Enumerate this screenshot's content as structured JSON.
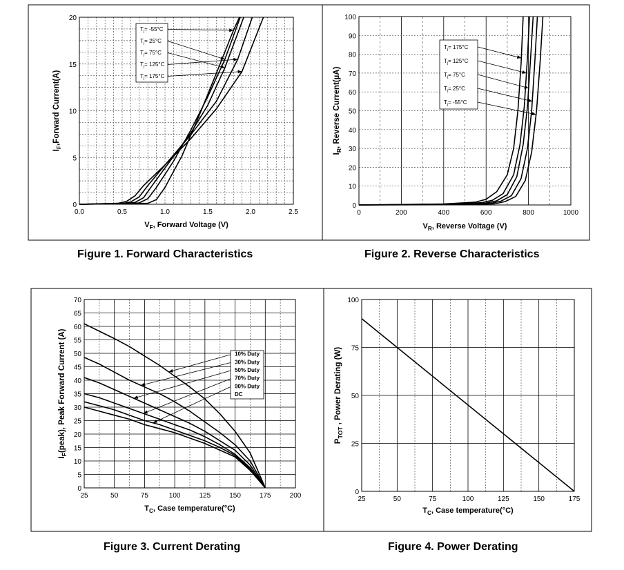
{
  "captions": {
    "fig1": "Figure 1. Forward Characteristics",
    "fig2": "Figure 2. Reverse Characteristics",
    "fig3": "Figure 3. Current Derating",
    "fig4": "Figure 4. Power Derating"
  },
  "chart_data": [
    {
      "type": "line",
      "xlabel": "VF, Forward Voltage (V)",
      "ylabel": "IF,Forward Current(A)",
      "xlim": [
        0,
        2.5
      ],
      "ylim": [
        0,
        20
      ],
      "xticks": [
        "0.0",
        "0.5",
        "1.0",
        "1.5",
        "2.0",
        "2.5"
      ],
      "yticks": [
        "0",
        "5",
        "10",
        "15",
        "20"
      ],
      "legend": [
        "Tj= -55°C",
        "Tj= 25°C",
        "Tj= 75°C",
        "Tj= 125°C",
        "Tj= 175°C"
      ],
      "grid": true,
      "legend_position": "top-left",
      "series": [
        {
          "name": "Tj= -55°C",
          "x": [
            0,
            0.5,
            0.8,
            0.9,
            1.0,
            1.2,
            1.4,
            1.6,
            1.8,
            1.87
          ],
          "y": [
            0,
            0.05,
            0.1,
            0.5,
            1.8,
            5.2,
            9.5,
            14.0,
            18.6,
            20
          ]
        },
        {
          "name": "Tj= 25°C",
          "x": [
            0,
            0.5,
            0.7,
            0.8,
            0.9,
            1.1,
            1.3,
            1.5,
            1.7,
            1.88
          ],
          "y": [
            0,
            0.05,
            0.15,
            0.6,
            1.8,
            4.6,
            7.9,
            11.5,
            15.5,
            20
          ]
        },
        {
          "name": "Tj= 75°C",
          "x": [
            0,
            0.5,
            0.65,
            0.75,
            0.85,
            1.05,
            1.3,
            1.5,
            1.7,
            1.92
          ],
          "y": [
            0,
            0.06,
            0.2,
            0.7,
            2.0,
            4.5,
            7.6,
            10.6,
            14.6,
            20
          ]
        },
        {
          "name": "Tj= 125°C",
          "x": [
            0,
            0.5,
            0.6,
            0.7,
            0.8,
            1.0,
            1.3,
            1.6,
            1.85,
            2.02
          ],
          "y": [
            0,
            0.08,
            0.25,
            0.8,
            2.0,
            4.2,
            7.4,
            11.0,
            15.5,
            20
          ]
        },
        {
          "name": "Tj= 175°C",
          "x": [
            0,
            0.45,
            0.55,
            0.65,
            0.75,
            1.0,
            1.3,
            1.6,
            1.9,
            2.15
          ],
          "y": [
            0,
            0.1,
            0.3,
            0.9,
            2.0,
            4.2,
            7.0,
            10.2,
            14.2,
            20
          ]
        }
      ]
    },
    {
      "type": "line",
      "xlabel": "VR, Reverse Voltage (V)",
      "ylabel": "IR, Reverse Current(µA)",
      "xlim": [
        0,
        1000
      ],
      "ylim": [
        0,
        100
      ],
      "xticks": [
        "0",
        "200",
        "400",
        "600",
        "800",
        "1000"
      ],
      "yticks": [
        "0",
        "10",
        "20",
        "30",
        "40",
        "50",
        "60",
        "70",
        "80",
        "90",
        "100"
      ],
      "legend": [
        "Tj= 175°C",
        "Tj= 125°C",
        "Tj= 75°C",
        "Tj= 25°C",
        "Tj= -55°C"
      ],
      "grid": true,
      "legend_position": "top-right",
      "series": [
        {
          "name": "Tj= 175°C",
          "x": [
            0,
            400,
            550,
            600,
            650,
            700,
            730,
            750,
            765,
            775
          ],
          "y": [
            0,
            0.5,
            1.5,
            3,
            7,
            16,
            30,
            50,
            75,
            100
          ]
        },
        {
          "name": "Tj= 125°C",
          "x": [
            0,
            400,
            580,
            630,
            680,
            730,
            760,
            780,
            795,
            805
          ],
          "y": [
            0,
            0.4,
            1.2,
            2.5,
            6,
            16,
            32,
            52,
            78,
            100
          ]
        },
        {
          "name": "Tj= 75°C",
          "x": [
            0,
            400,
            600,
            650,
            700,
            745,
            775,
            795,
            810,
            822
          ],
          "y": [
            0,
            0.3,
            1,
            2.2,
            5.5,
            15,
            32,
            52,
            78,
            100
          ]
        },
        {
          "name": "Tj= 25°C",
          "x": [
            0,
            400,
            620,
            670,
            720,
            765,
            795,
            815,
            830,
            842
          ],
          "y": [
            0,
            0.2,
            0.8,
            2,
            5,
            14,
            30,
            50,
            76,
            100
          ]
        },
        {
          "name": "Tj= -55°C",
          "x": [
            0,
            400,
            640,
            690,
            740,
            785,
            815,
            838,
            855,
            868
          ],
          "y": [
            0,
            0.1,
            0.6,
            1.8,
            4.5,
            13,
            28,
            50,
            76,
            100
          ]
        }
      ]
    },
    {
      "type": "line",
      "xlabel": "TC, Case temperature(°C)",
      "ylabel": "IF(peak), Peak Forward Current (A)",
      "xlim": [
        25,
        200
      ],
      "ylim": [
        0,
        70
      ],
      "xticks": [
        "25",
        "50",
        "75",
        "100",
        "125",
        "150",
        "175",
        "200"
      ],
      "yticks": [
        "0",
        "5",
        "10",
        "15",
        "20",
        "25",
        "30",
        "35",
        "40",
        "45",
        "50",
        "55",
        "60",
        "65",
        "70"
      ],
      "legend": [
        "10% Duty",
        "30% Duty",
        "50% Duty",
        "70% Duty",
        "90% Duty",
        "DC"
      ],
      "grid": true,
      "legend_position": "right",
      "series": [
        {
          "name": "10% Duty",
          "x": [
            25,
            37.5,
            50,
            62.5,
            75,
            87.5,
            100,
            112.5,
            125,
            137.5,
            150,
            162.5,
            175
          ],
          "y": [
            61,
            58.2,
            55.5,
            52.5,
            49,
            45.5,
            41.5,
            37.5,
            33,
            27.5,
            21,
            13,
            0
          ]
        },
        {
          "name": "30% Duty",
          "x": [
            25,
            37.5,
            50,
            62.5,
            75,
            87.5,
            100,
            112.5,
            125,
            137.5,
            150,
            162.5,
            175
          ],
          "y": [
            48.5,
            46,
            43,
            40,
            37.5,
            35,
            32,
            28.5,
            24.5,
            20.5,
            16,
            10,
            0
          ]
        },
        {
          "name": "50% Duty",
          "x": [
            25,
            37.5,
            50,
            62.5,
            75,
            87.5,
            100,
            112.5,
            125,
            137.5,
            150,
            162.5,
            175
          ],
          "y": [
            41,
            39,
            36.5,
            34,
            31.5,
            29,
            26.5,
            24,
            21,
            17.5,
            14,
            8.5,
            0
          ]
        },
        {
          "name": "70% Duty",
          "x": [
            25,
            37.5,
            50,
            62.5,
            75,
            87.5,
            100,
            112.5,
            125,
            137.5,
            150,
            162.5,
            175
          ],
          "y": [
            35,
            33.5,
            31.5,
            29.5,
            27.5,
            25.5,
            23.5,
            21.5,
            19,
            16,
            12.5,
            7.5,
            0
          ]
        },
        {
          "name": "90% Duty",
          "x": [
            25,
            37.5,
            50,
            62.5,
            75,
            87.5,
            100,
            112.5,
            125,
            137.5,
            150,
            162.5,
            175
          ],
          "y": [
            32,
            30.5,
            29,
            27,
            25,
            23.5,
            21.5,
            19.5,
            17.5,
            15,
            12,
            7,
            0
          ]
        },
        {
          "name": "DC",
          "x": [
            25,
            37.5,
            50,
            62.5,
            75,
            87.5,
            100,
            112.5,
            125,
            137.5,
            150,
            162.5,
            175
          ],
          "y": [
            30,
            28.5,
            27,
            25.5,
            23.5,
            22,
            20.5,
            18.5,
            16.5,
            14,
            11.5,
            6.5,
            0
          ]
        }
      ]
    },
    {
      "type": "line",
      "xlabel": "TC, Case temperature(°C)",
      "ylabel": "PTOT , Power Derating (W)",
      "xlim": [
        25,
        175
      ],
      "ylim": [
        0,
        100
      ],
      "xticks": [
        "25",
        "50",
        "75",
        "100",
        "125",
        "150",
        "175"
      ],
      "yticks": [
        "0",
        "25",
        "50",
        "75",
        "100"
      ],
      "grid": true,
      "series": [
        {
          "x": [
            25,
            175
          ],
          "y": [
            90,
            0
          ]
        }
      ]
    }
  ]
}
